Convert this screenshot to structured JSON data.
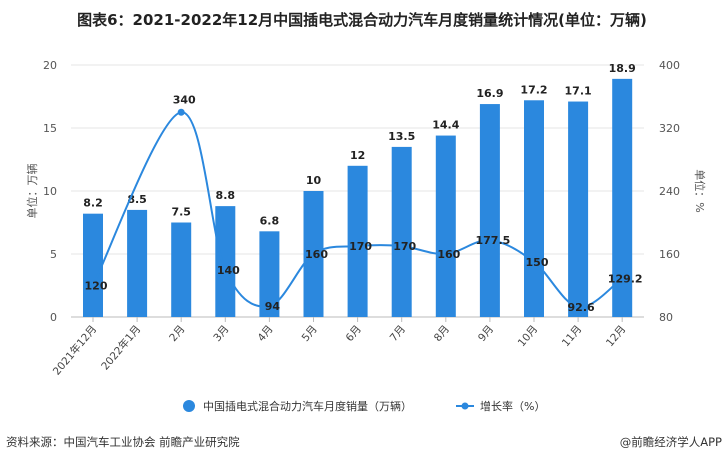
{
  "title": "图表6：2021-2022年12月中国插电式混合动力汽车月度销量统计情况(单位：万辆)",
  "source": "资料来源：中国汽车工业协会 前瞻产业研究院",
  "credit": "@前瞻经济学人APP",
  "chart_data": {
    "type": "bar+line",
    "categories": [
      "2021年12月",
      "2022年1月",
      "2月",
      "3月",
      "4月",
      "5月",
      "6月",
      "7月",
      "8月",
      "9月",
      "10月",
      "11月",
      "12月"
    ],
    "series": [
      {
        "name": "中国插电式混合动力汽车月度销量（万辆）",
        "type": "bar",
        "axis": "left",
        "color": "#2b88de",
        "values": [
          8.2,
          8.5,
          7.5,
          8.8,
          6.8,
          10,
          12,
          13.5,
          14.4,
          16.9,
          17.2,
          17.1,
          18.9
        ]
      },
      {
        "name": "增长率（%）",
        "type": "line",
        "axis": "right",
        "color": "#2b88de",
        "values": [
          120,
          null,
          340,
          140,
          94,
          160,
          170,
          170,
          160,
          177.5,
          150,
          92.6,
          129.2
        ]
      }
    ],
    "line_labels": [
      "120",
      "",
      "340",
      "140",
      "94",
      "160",
      "170",
      "170",
      "160",
      "177.5",
      "150",
      "92.6",
      "129.2"
    ],
    "bar_labels": [
      "8.2",
      "8.5",
      "7.5",
      "8.8",
      "6.8",
      "10",
      "12",
      "13.5",
      "14.4",
      "16.9",
      "17.2",
      "17.1",
      "18.9"
    ],
    "left_axis": {
      "label": "单位：万辆",
      "ylim": [
        0,
        20
      ],
      "ticks": [
        "0",
        "5",
        "10",
        "15",
        "20"
      ]
    },
    "right_axis": {
      "label": "单位：%",
      "ylim": [
        80,
        400
      ],
      "ticks": [
        "80",
        "160",
        "240",
        "320",
        "400"
      ]
    },
    "grid": "horizontal",
    "legend_position": "bottom"
  }
}
